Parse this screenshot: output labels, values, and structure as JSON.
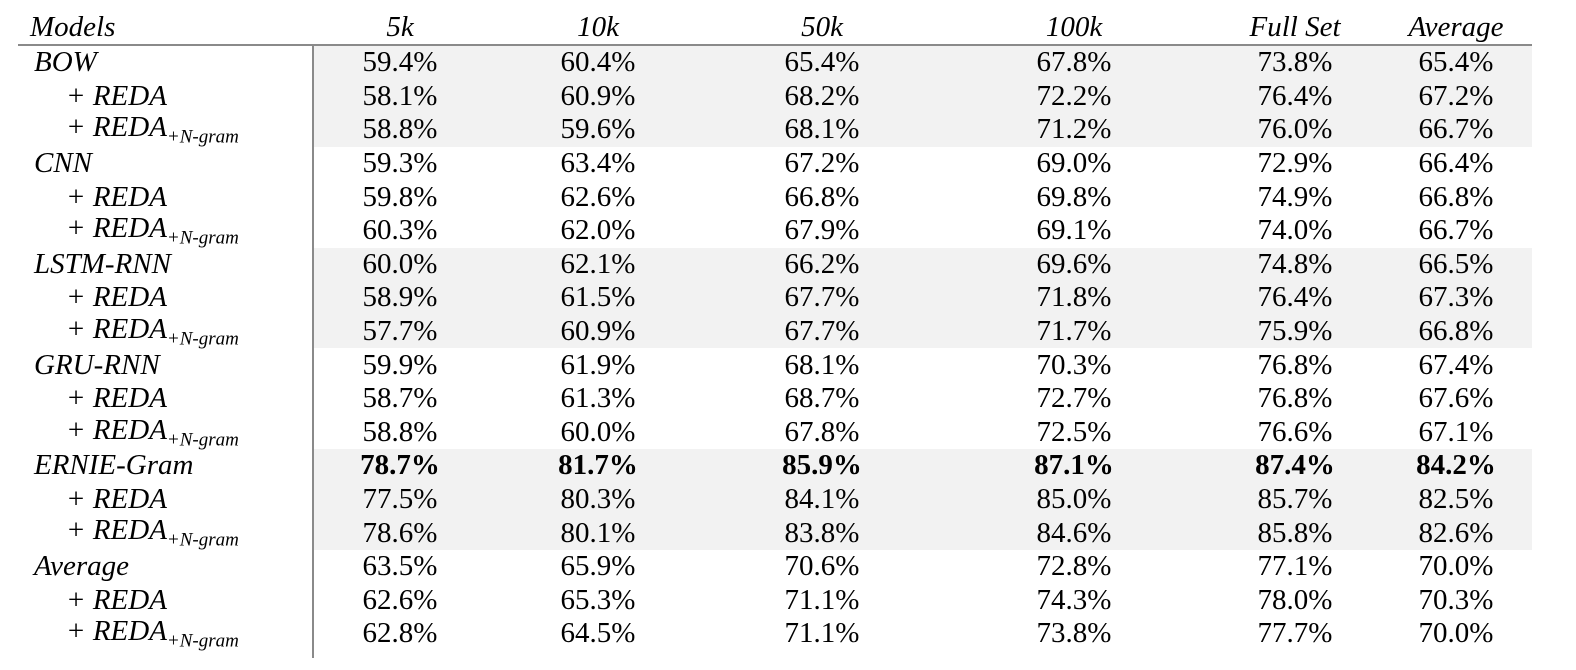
{
  "columns": [
    "Models",
    "5k",
    "10k",
    "50k",
    "100k",
    "Full Set",
    "Average"
  ],
  "rows": [
    {
      "model": "BOW",
      "plus": "",
      "sub": "",
      "values": [
        "59.4%",
        "60.4%",
        "65.4%",
        "67.8%",
        "73.8%",
        "65.4%"
      ],
      "shaded": true,
      "bold": false
    },
    {
      "model": "",
      "plus": "+ REDA",
      "sub": "",
      "values": [
        "58.1%",
        "60.9%",
        "68.2%",
        "72.2%",
        "76.4%",
        "67.2%"
      ],
      "shaded": true,
      "bold": false
    },
    {
      "model": "",
      "plus": "+ REDA",
      "sub": "+N-gram",
      "values": [
        "58.8%",
        "59.6%",
        "68.1%",
        "71.2%",
        "76.0%",
        "66.7%"
      ],
      "shaded": true,
      "bold": false
    },
    {
      "model": "CNN",
      "plus": "",
      "sub": "",
      "values": [
        "59.3%",
        "63.4%",
        "67.2%",
        "69.0%",
        "72.9%",
        "66.4%"
      ],
      "shaded": false,
      "bold": false
    },
    {
      "model": "",
      "plus": "+ REDA",
      "sub": "",
      "values": [
        "59.8%",
        "62.6%",
        "66.8%",
        "69.8%",
        "74.9%",
        "66.8%"
      ],
      "shaded": false,
      "bold": false
    },
    {
      "model": "",
      "plus": "+ REDA",
      "sub": "+N-gram",
      "values": [
        "60.3%",
        "62.0%",
        "67.9%",
        "69.1%",
        "74.0%",
        "66.7%"
      ],
      "shaded": false,
      "bold": false
    },
    {
      "model": "LSTM-RNN",
      "plus": "",
      "sub": "",
      "values": [
        "60.0%",
        "62.1%",
        "66.2%",
        "69.6%",
        "74.8%",
        "66.5%"
      ],
      "shaded": true,
      "bold": false
    },
    {
      "model": "",
      "plus": "+ REDA",
      "sub": "",
      "values": [
        "58.9%",
        "61.5%",
        "67.7%",
        "71.8%",
        "76.4%",
        "67.3%"
      ],
      "shaded": true,
      "bold": false
    },
    {
      "model": "",
      "plus": "+ REDA",
      "sub": "+N-gram",
      "values": [
        "57.7%",
        "60.9%",
        "67.7%",
        "71.7%",
        "75.9%",
        "66.8%"
      ],
      "shaded": true,
      "bold": false
    },
    {
      "model": "GRU-RNN",
      "plus": "",
      "sub": "",
      "values": [
        "59.9%",
        "61.9%",
        "68.1%",
        "70.3%",
        "76.8%",
        "67.4%"
      ],
      "shaded": false,
      "bold": false
    },
    {
      "model": "",
      "plus": "+ REDA",
      "sub": "",
      "values": [
        "58.7%",
        "61.3%",
        "68.7%",
        "72.7%",
        "76.8%",
        "67.6%"
      ],
      "shaded": false,
      "bold": false
    },
    {
      "model": "",
      "plus": "+ REDA",
      "sub": "+N-gram",
      "values": [
        "58.8%",
        "60.0%",
        "67.8%",
        "72.5%",
        "76.6%",
        "67.1%"
      ],
      "shaded": false,
      "bold": false
    },
    {
      "model": "ERNIE-Gram",
      "plus": "",
      "sub": "",
      "values": [
        "78.7%",
        "81.7%",
        "85.9%",
        "87.1%",
        "87.4%",
        "84.2%"
      ],
      "shaded": true,
      "bold": true
    },
    {
      "model": "",
      "plus": "+ REDA",
      "sub": "",
      "values": [
        "77.5%",
        "80.3%",
        "84.1%",
        "85.0%",
        "85.7%",
        "82.5%"
      ],
      "shaded": true,
      "bold": false
    },
    {
      "model": "",
      "plus": "+ REDA",
      "sub": "+N-gram",
      "values": [
        "78.6%",
        "80.1%",
        "83.8%",
        "84.6%",
        "85.8%",
        "82.6%"
      ],
      "shaded": true,
      "bold": false
    },
    {
      "model": "Average",
      "plus": "",
      "sub": "",
      "values": [
        "63.5%",
        "65.9%",
        "70.6%",
        "72.8%",
        "77.1%",
        "70.0%"
      ],
      "shaded": false,
      "bold": false
    },
    {
      "model": "",
      "plus": "+ REDA",
      "sub": "",
      "values": [
        "62.6%",
        "65.3%",
        "71.1%",
        "74.3%",
        "78.0%",
        "70.3%"
      ],
      "shaded": false,
      "bold": false
    },
    {
      "model": "",
      "plus": "+ REDA",
      "sub": "+N-gram",
      "values": [
        "62.8%",
        "64.5%",
        "71.1%",
        "73.8%",
        "77.7%",
        "70.0%"
      ],
      "shaded": false,
      "bold": false
    }
  ]
}
